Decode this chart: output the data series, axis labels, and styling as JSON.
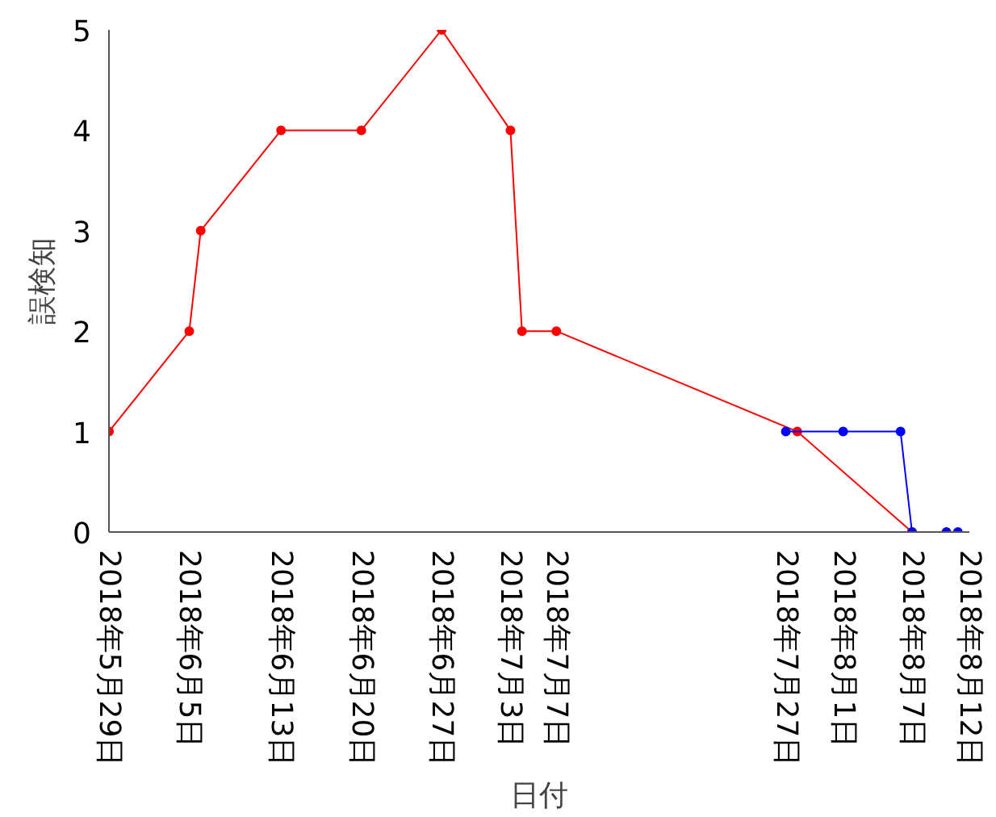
{
  "chart_data": {
    "type": "line",
    "xlabel": "日付",
    "ylabel": "誤検知",
    "xlim": [
      "2018-05-29",
      "2018-08-12"
    ],
    "ylim": [
      0,
      5
    ],
    "yticks": [
      0,
      1,
      2,
      3,
      4,
      5
    ],
    "xticks": [
      {
        "value": "2018-05-29",
        "label": "2018年5月29日"
      },
      {
        "value": "2018-06-05",
        "label": "2018年6月5日"
      },
      {
        "value": "2018-06-13",
        "label": "2018年6月13日"
      },
      {
        "value": "2018-06-20",
        "label": "2018年6月20日"
      },
      {
        "value": "2018-06-27",
        "label": "2018年6月27日"
      },
      {
        "value": "2018-07-03",
        "label": "2018年7月3日"
      },
      {
        "value": "2018-07-07",
        "label": "2018年7月7日"
      },
      {
        "value": "2018-07-27",
        "label": "2018年7月27日"
      },
      {
        "value": "2018-08-01",
        "label": "2018年8月1日"
      },
      {
        "value": "2018-08-07",
        "label": "2018年8月7日"
      },
      {
        "value": "2018-08-12",
        "label": "2018年8月12日"
      }
    ],
    "marker": "circle",
    "grid": false,
    "series": [
      {
        "color": "#ff0000",
        "x": [
          "2018-05-29",
          "2018-06-05",
          "2018-06-06",
          "2018-06-13",
          "2018-06-20",
          "2018-06-27",
          "2018-07-03",
          "2018-07-04",
          "2018-07-07",
          "2018-07-28",
          "2018-08-07"
        ],
        "values": [
          1,
          2,
          3,
          4,
          4,
          5,
          4,
          2,
          2,
          1,
          0
        ]
      },
      {
        "color": "#0000ff",
        "x": [
          "2018-07-27",
          "2018-08-01",
          "2018-08-06",
          "2018-08-07",
          "2018-08-10",
          "2018-08-11"
        ],
        "values": [
          1,
          1,
          1,
          0,
          0,
          0
        ]
      }
    ]
  }
}
